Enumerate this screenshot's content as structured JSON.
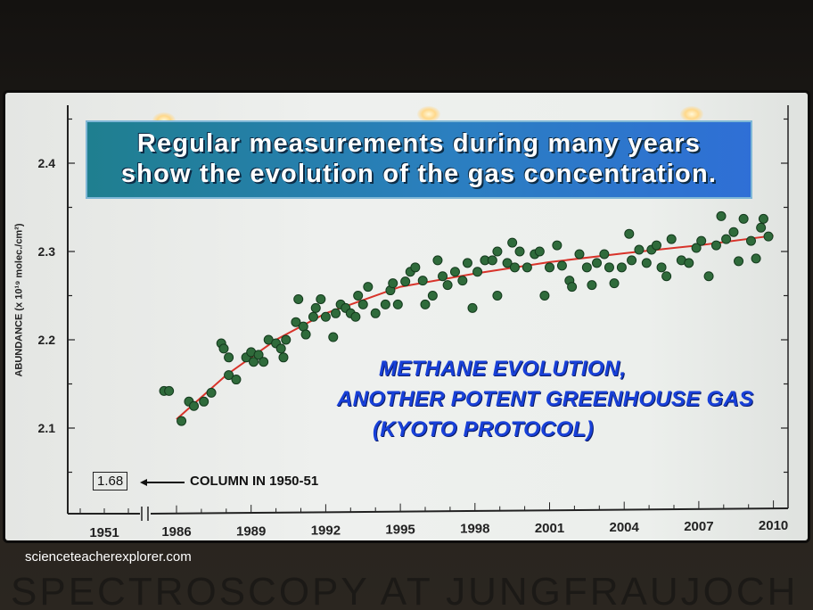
{
  "banner": {
    "line1": "Regular measurements during many years",
    "line2": "show the evolution of the gas concentration."
  },
  "annotation": {
    "line1": "METHANE EVOLUTION,",
    "line2": "ANOTHER POTENT GREENHOUSE GAS",
    "line3": "(KYOTO  PROTOCOL)"
  },
  "column_1950": {
    "value": "1.68",
    "label": "COLUMN IN 1950-51"
  },
  "watermark": "scienceteacherexplorer.com",
  "bottom_title": "SPECTROSCOPY AT JUNGFRAUJOCH",
  "colors": {
    "points": "#2f6b3b",
    "fit": "#d8332a",
    "annotation": "#1840d8"
  },
  "chart_data": {
    "type": "scatter",
    "title": "Methane evolution",
    "xlabel": "",
    "ylabel": "ABUNDANCE (x 10¹⁹ molec./cm²)",
    "ylim": [
      2.05,
      2.45
    ],
    "xlim": [
      1984.8,
      2010.8
    ],
    "x_ticks": [
      "1951",
      "1986",
      "1989",
      "1992",
      "1995",
      "1998",
      "2001",
      "2004",
      "2007",
      "2010"
    ],
    "x_tick_values": [
      1951,
      1986,
      1989,
      1992,
      1995,
      1998,
      2001,
      2004,
      2007,
      2010
    ],
    "y_ticks": [
      "2.1",
      "2.2",
      "2.3",
      "2.4"
    ],
    "y_tick_values": [
      2.1,
      2.2,
      2.3,
      2.4
    ],
    "axis_break": "between 1951 and 1986",
    "series": [
      {
        "name": "measurements",
        "kind": "points",
        "points": [
          [
            1985.5,
            2.142
          ],
          [
            1985.7,
            2.142
          ],
          [
            1986.2,
            2.108
          ],
          [
            1986.5,
            2.13
          ],
          [
            1986.7,
            2.125
          ],
          [
            1987.1,
            2.13
          ],
          [
            1987.4,
            2.14
          ],
          [
            1987.8,
            2.196
          ],
          [
            1987.9,
            2.19
          ],
          [
            1988.1,
            2.16
          ],
          [
            1988.4,
            2.155
          ],
          [
            1988.1,
            2.18
          ],
          [
            1988.8,
            2.18
          ],
          [
            1989.0,
            2.186
          ],
          [
            1989.1,
            2.175
          ],
          [
            1989.3,
            2.183
          ],
          [
            1989.5,
            2.175
          ],
          [
            1989.7,
            2.2
          ],
          [
            1990.0,
            2.196
          ],
          [
            1990.2,
            2.19
          ],
          [
            1990.3,
            2.18
          ],
          [
            1990.4,
            2.2
          ],
          [
            1990.8,
            2.22
          ],
          [
            1990.9,
            2.246
          ],
          [
            1991.1,
            2.215
          ],
          [
            1991.2,
            2.206
          ],
          [
            1991.5,
            2.226
          ],
          [
            1991.6,
            2.236
          ],
          [
            1991.8,
            2.246
          ],
          [
            1992.0,
            2.226
          ],
          [
            1992.3,
            2.203
          ],
          [
            1992.4,
            2.23
          ],
          [
            1992.6,
            2.24
          ],
          [
            1992.8,
            2.236
          ],
          [
            1993.0,
            2.23
          ],
          [
            1993.2,
            2.226
          ],
          [
            1993.3,
            2.25
          ],
          [
            1993.5,
            2.24
          ],
          [
            1993.7,
            2.26
          ],
          [
            1994.0,
            2.23
          ],
          [
            1994.4,
            2.24
          ],
          [
            1994.6,
            2.256
          ],
          [
            1994.7,
            2.264
          ],
          [
            1994.9,
            2.24
          ],
          [
            1995.2,
            2.266
          ],
          [
            1995.4,
            2.277
          ],
          [
            1995.6,
            2.282
          ],
          [
            1995.9,
            2.267
          ],
          [
            1996.0,
            2.24
          ],
          [
            1996.3,
            2.25
          ],
          [
            1996.5,
            2.29
          ],
          [
            1996.7,
            2.272
          ],
          [
            1996.9,
            2.262
          ],
          [
            1997.2,
            2.277
          ],
          [
            1997.5,
            2.267
          ],
          [
            1997.7,
            2.287
          ],
          [
            1997.9,
            2.236
          ],
          [
            1998.1,
            2.277
          ],
          [
            1998.4,
            2.29
          ],
          [
            1998.7,
            2.29
          ],
          [
            1998.9,
            2.25
          ],
          [
            1998.9,
            2.3
          ],
          [
            1999.3,
            2.287
          ],
          [
            1999.5,
            2.31
          ],
          [
            1999.6,
            2.282
          ],
          [
            1999.8,
            2.3
          ],
          [
            2000.1,
            2.282
          ],
          [
            2000.4,
            2.297
          ],
          [
            2000.6,
            2.3
          ],
          [
            2000.8,
            2.25
          ],
          [
            2001.0,
            2.282
          ],
          [
            2001.3,
            2.307
          ],
          [
            2001.5,
            2.284
          ],
          [
            2001.8,
            2.267
          ],
          [
            2001.9,
            2.26
          ],
          [
            2002.2,
            2.297
          ],
          [
            2002.5,
            2.282
          ],
          [
            2002.7,
            2.262
          ],
          [
            2002.9,
            2.287
          ],
          [
            2003.2,
            2.297
          ],
          [
            2003.4,
            2.282
          ],
          [
            2003.6,
            2.264
          ],
          [
            2003.9,
            2.282
          ],
          [
            2004.2,
            2.32
          ],
          [
            2004.3,
            2.29
          ],
          [
            2004.6,
            2.302
          ],
          [
            2004.9,
            2.287
          ],
          [
            2005.1,
            2.302
          ],
          [
            2005.3,
            2.307
          ],
          [
            2005.5,
            2.282
          ],
          [
            2005.7,
            2.272
          ],
          [
            2005.9,
            2.314
          ],
          [
            2006.3,
            2.29
          ],
          [
            2006.6,
            2.287
          ],
          [
            2006.9,
            2.304
          ],
          [
            2007.1,
            2.312
          ],
          [
            2007.4,
            2.272
          ],
          [
            2007.7,
            2.307
          ],
          [
            2007.9,
            2.34
          ],
          [
            2008.1,
            2.314
          ],
          [
            2008.4,
            2.322
          ],
          [
            2008.6,
            2.289
          ],
          [
            2008.8,
            2.337
          ],
          [
            2009.1,
            2.312
          ],
          [
            2009.3,
            2.292
          ],
          [
            2009.5,
            2.327
          ],
          [
            2009.6,
            2.337
          ],
          [
            2009.8,
            2.317
          ]
        ]
      },
      {
        "name": "fit",
        "kind": "line",
        "points": [
          [
            1986,
            2.11
          ],
          [
            1988,
            2.16
          ],
          [
            1990,
            2.2
          ],
          [
            1992,
            2.23
          ],
          [
            1995,
            2.26
          ],
          [
            1998,
            2.275
          ],
          [
            2001,
            2.288
          ],
          [
            2004,
            2.298
          ],
          [
            2007,
            2.307
          ],
          [
            2010,
            2.318
          ]
        ]
      }
    ]
  }
}
